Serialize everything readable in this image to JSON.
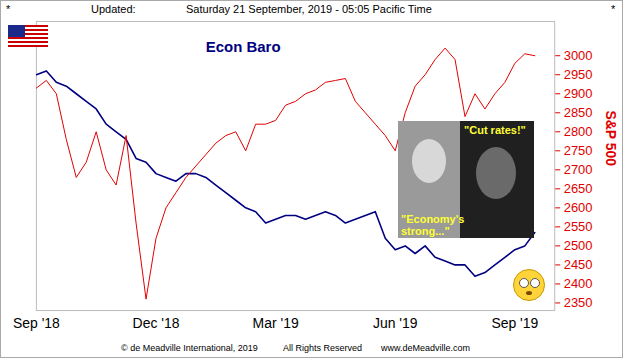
{
  "chart_data": {
    "type": "line",
    "header": {
      "left": "*",
      "label": "Updated:",
      "date": "Saturday 21 September, 2019 - 05:05 Pacific Time",
      "right": "*"
    },
    "annotations": [
      "\"Cut rates!\"",
      "\"Economy's strong...\""
    ],
    "footer": [
      "© de Meadville International, 2019",
      "All Rights Reserved",
      "www.deMeadville.com"
    ],
    "x": [
      0,
      0.25,
      0.5,
      0.75,
      1,
      1.25,
      1.5,
      1.75,
      2,
      2.25,
      2.5,
      2.75,
      3,
      3.25,
      3.5,
      3.75,
      4,
      4.25,
      4.5,
      4.75,
      5,
      5.25,
      5.5,
      5.75,
      6,
      6.25,
      6.5,
      6.75,
      7,
      7.25,
      7.5,
      7.75,
      8,
      8.25,
      8.5,
      8.75,
      9,
      9.25,
      9.5,
      9.75,
      10,
      10.25,
      10.5,
      10.75,
      11,
      11.25,
      11.5,
      11.75,
      12,
      12.25,
      12.5
    ],
    "series": [
      {
        "name": "Econ Baro",
        "color": "#000080",
        "values": [
          2950,
          2960,
          2930,
          2920,
          2900,
          2880,
          2860,
          2820,
          2800,
          2780,
          2730,
          2720,
          2690,
          2680,
          2670,
          2690,
          2690,
          2680,
          2660,
          2640,
          2620,
          2600,
          2590,
          2560,
          2570,
          2580,
          2580,
          2570,
          2580,
          2590,
          2580,
          2560,
          2570,
          2580,
          2590,
          2520,
          2490,
          2500,
          2480,
          2500,
          2470,
          2460,
          2450,
          2450,
          2420,
          2430,
          2450,
          2470,
          2490,
          2500,
          2535
        ]
      },
      {
        "name": "S&P 500",
        "color": "#e00000",
        "values": [
          2915,
          2935,
          2900,
          2780,
          2680,
          2720,
          2800,
          2700,
          2660,
          2790,
          2560,
          2360,
          2520,
          2600,
          2640,
          2680,
          2710,
          2740,
          2770,
          2790,
          2800,
          2750,
          2820,
          2820,
          2830,
          2870,
          2880,
          2900,
          2910,
          2930,
          2935,
          2940,
          2880,
          2850,
          2820,
          2790,
          2750,
          2850,
          2920,
          2950,
          2990,
          3020,
          2990,
          2840,
          2900,
          2860,
          2900,
          2930,
          2980,
          3005,
          3000
        ]
      }
    ],
    "xlim": [
      0,
      13
    ],
    "xticks": [
      {
        "value": 0,
        "label": "Sep '18"
      },
      {
        "value": 3,
        "label": "Dec '18"
      },
      {
        "value": 6,
        "label": "Mar '19"
      },
      {
        "value": 9,
        "label": "Jun '19"
      },
      {
        "value": 12,
        "label": "Sep '19"
      }
    ],
    "ylim": [
      2330,
      3090
    ],
    "yticks": [
      2350,
      2400,
      2450,
      2500,
      2550,
      2600,
      2650,
      2700,
      2750,
      2800,
      2850,
      2900,
      2950,
      3000
    ],
    "grid": false
  }
}
